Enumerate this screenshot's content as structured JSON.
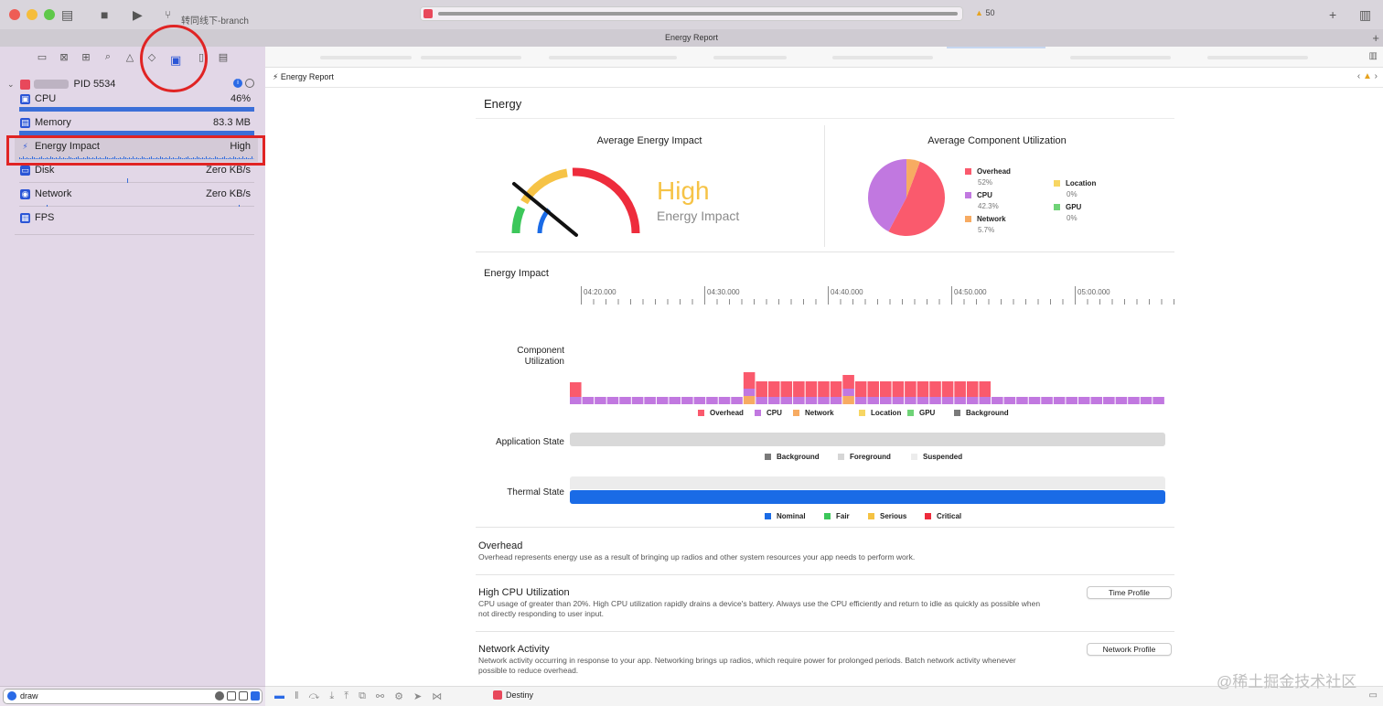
{
  "window": {
    "branch": "转同线下-branch",
    "warnings": "50",
    "tab_title": "Energy Report"
  },
  "sidebar": {
    "process": {
      "name": "PID 5534"
    },
    "gauges": [
      {
        "label": "CPU",
        "value": "46%",
        "icon": "cpu-icon"
      },
      {
        "label": "Memory",
        "value": "83.3 MB",
        "icon": "memory-icon"
      },
      {
        "label": "Energy Impact",
        "value": "High",
        "icon": "bolt-icon"
      },
      {
        "label": "Disk",
        "value": "Zero KB/s",
        "icon": "disk-icon"
      },
      {
        "label": "Network",
        "value": "Zero KB/s",
        "icon": "network-icon"
      },
      {
        "label": "FPS",
        "value": "",
        "icon": "fps-icon"
      }
    ],
    "filter": {
      "value": "draw"
    }
  },
  "jumpbar": {
    "title": "Energy Report"
  },
  "report": {
    "title": "Energy",
    "avg_energy": {
      "heading": "Average Energy Impact",
      "level": "High",
      "sub": "Energy Impact",
      "level_fraction": 0.25
    },
    "avg_component": {
      "heading": "Average Component Utilization",
      "items": [
        {
          "name": "Overhead",
          "pct": "52%",
          "color": "#fa5a6d"
        },
        {
          "name": "CPU",
          "pct": "42.3%",
          "color": "#c178e0"
        },
        {
          "name": "Network",
          "pct": "5.7%",
          "color": "#f7ab62"
        },
        {
          "name": "Location",
          "pct": "0%",
          "color": "#f7d663"
        },
        {
          "name": "GPU",
          "pct": "0%",
          "color": "#6fd377"
        }
      ]
    },
    "timeline": {
      "heading": "Energy Impact",
      "ticks": [
        "04:20.000",
        "04:30.000",
        "04:40.000",
        "04:50.000",
        "05:00.000"
      ],
      "component_label": "Component Utilization",
      "component_legend": [
        {
          "name": "Overhead",
          "color": "#fa5a6d"
        },
        {
          "name": "CPU",
          "color": "#c178e0"
        },
        {
          "name": "Network",
          "color": "#f7ab62"
        },
        {
          "name": "Location",
          "color": "#f7d663"
        },
        {
          "name": "GPU",
          "color": "#6fd377"
        },
        {
          "name": "Background",
          "color": "#7a7a7a"
        }
      ],
      "app_state_label": "Application State",
      "app_state_legend": [
        {
          "name": "Background",
          "color": "#7a7a7a"
        },
        {
          "name": "Foreground",
          "color": "#d6d6d6"
        },
        {
          "name": "Suspended",
          "color": "#ececec"
        }
      ],
      "thermal_label": "Thermal State",
      "thermal_legend": [
        {
          "name": "Nominal",
          "color": "#1a6be6"
        },
        {
          "name": "Fair",
          "color": "#3cc75a"
        },
        {
          "name": "Serious",
          "color": "#f5c242"
        },
        {
          "name": "Critical",
          "color": "#ee2c3c"
        }
      ]
    },
    "overhead": {
      "title": "Overhead",
      "desc": "Overhead represents energy use as a result of bringing up radios and other system resources your app needs to perform work."
    },
    "cpu_section": {
      "title": "High CPU Utilization",
      "desc": "CPU usage of greater than 20%. High CPU utilization rapidly drains a device's battery. Always use the CPU efficiently and return to idle as quickly as possible when not directly responding to user input.",
      "button": "Time Profile"
    },
    "network_section": {
      "title": "Network Activity",
      "desc": "Network activity occurring in response to your app. Networking brings up radios, which require power for prolonged periods. Batch network activity whenever possible to reduce overhead.",
      "button": "Network Profile"
    }
  },
  "debugbar": {
    "process": "Destiny"
  },
  "watermark": "@稀土掘金技术社区"
}
